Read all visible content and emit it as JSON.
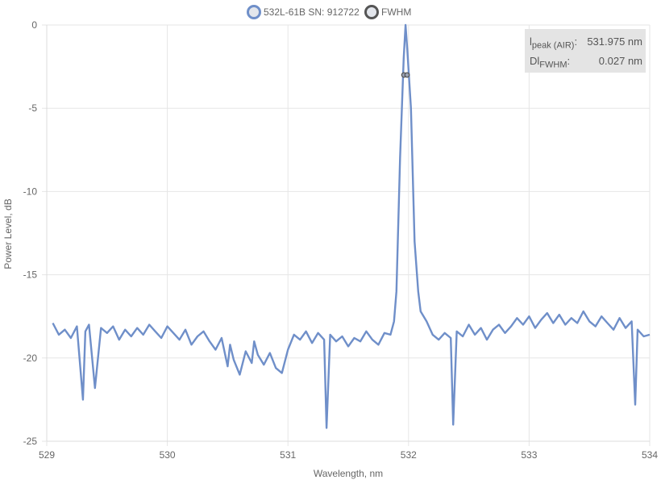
{
  "chart_data": {
    "type": "line",
    "xlabel": "Wavelength, nm",
    "ylabel": "Power Level, dB",
    "xlim": [
      529.0,
      534.0
    ],
    "ylim": [
      -25,
      0
    ],
    "x_ticks": [
      529,
      530,
      531,
      532,
      533,
      534
    ],
    "y_ticks": [
      0,
      -5,
      -10,
      -15,
      -20,
      -25
    ],
    "grid": true,
    "legend_position": "top-center",
    "colors": {
      "spectrum": "#6f8fc9",
      "fwhm": "#555555"
    },
    "series": [
      {
        "name": "532L-61B SN: 912722",
        "x": [
          529.05,
          529.1,
          529.15,
          529.2,
          529.25,
          529.3,
          529.32,
          529.35,
          529.4,
          529.45,
          529.5,
          529.55,
          529.6,
          529.65,
          529.7,
          529.75,
          529.8,
          529.85,
          529.9,
          529.95,
          530.0,
          530.05,
          530.1,
          530.15,
          530.2,
          530.25,
          530.3,
          530.35,
          530.4,
          530.45,
          530.5,
          530.52,
          530.55,
          530.6,
          530.65,
          530.7,
          530.72,
          530.75,
          530.8,
          530.85,
          530.9,
          530.95,
          531.0,
          531.05,
          531.1,
          531.15,
          531.2,
          531.25,
          531.3,
          531.32,
          531.35,
          531.4,
          531.45,
          531.5,
          531.55,
          531.6,
          531.65,
          531.7,
          531.75,
          531.8,
          531.85,
          531.88,
          531.9,
          531.93,
          531.96,
          531.975,
          531.99,
          532.02,
          532.05,
          532.08,
          532.1,
          532.15,
          532.2,
          532.25,
          532.3,
          532.35,
          532.37,
          532.4,
          532.45,
          532.5,
          532.55,
          532.6,
          532.65,
          532.7,
          532.75,
          532.8,
          532.85,
          532.9,
          532.95,
          533.0,
          533.05,
          533.1,
          533.15,
          533.2,
          533.25,
          533.3,
          533.35,
          533.4,
          533.45,
          533.5,
          533.55,
          533.6,
          533.65,
          533.7,
          533.75,
          533.8,
          533.85,
          533.88,
          533.9,
          533.95,
          534.0
        ],
        "y": [
          -17.9,
          -18.6,
          -18.3,
          -18.8,
          -18.1,
          -22.5,
          -18.4,
          -18.0,
          -21.8,
          -18.2,
          -18.5,
          -18.1,
          -18.9,
          -18.3,
          -18.7,
          -18.2,
          -18.6,
          -18.0,
          -18.4,
          -18.8,
          -18.1,
          -18.5,
          -18.9,
          -18.3,
          -19.2,
          -18.7,
          -18.4,
          -19.0,
          -19.5,
          -18.8,
          -20.5,
          -19.2,
          -20.1,
          -21.0,
          -19.6,
          -20.3,
          -19.0,
          -19.8,
          -20.4,
          -19.7,
          -20.6,
          -20.9,
          -19.5,
          -18.6,
          -18.9,
          -18.4,
          -19.1,
          -18.5,
          -18.9,
          -24.2,
          -18.6,
          -19.0,
          -18.7,
          -19.3,
          -18.8,
          -19.0,
          -18.4,
          -18.9,
          -19.2,
          -18.5,
          -18.6,
          -17.8,
          -16.0,
          -8.0,
          -2.0,
          0.0,
          -1.5,
          -5.0,
          -13.0,
          -16.0,
          -17.2,
          -17.8,
          -18.6,
          -18.9,
          -18.5,
          -18.8,
          -24.0,
          -18.4,
          -18.7,
          -18.0,
          -18.6,
          -18.2,
          -18.9,
          -18.3,
          -18.0,
          -18.5,
          -18.1,
          -17.6,
          -18.0,
          -17.5,
          -18.2,
          -17.7,
          -17.3,
          -17.9,
          -17.4,
          -18.0,
          -17.6,
          -17.9,
          -17.2,
          -17.8,
          -18.1,
          -17.5,
          -17.9,
          -18.3,
          -17.6,
          -18.2,
          -17.8,
          -22.8,
          -18.3,
          -18.7,
          -18.6
        ]
      },
      {
        "name": "FWHM",
        "x": [
          531.962,
          531.988
        ],
        "y": [
          -3.0,
          -3.0
        ]
      }
    ],
    "annotations": {
      "peak_label": "l",
      "peak_sub": "peak (AIR)",
      "peak_value": "531.975 nm",
      "fwhm_label": "Dl",
      "fwhm_sub": "FWHM",
      "fwhm_value": "0.027 nm"
    }
  }
}
